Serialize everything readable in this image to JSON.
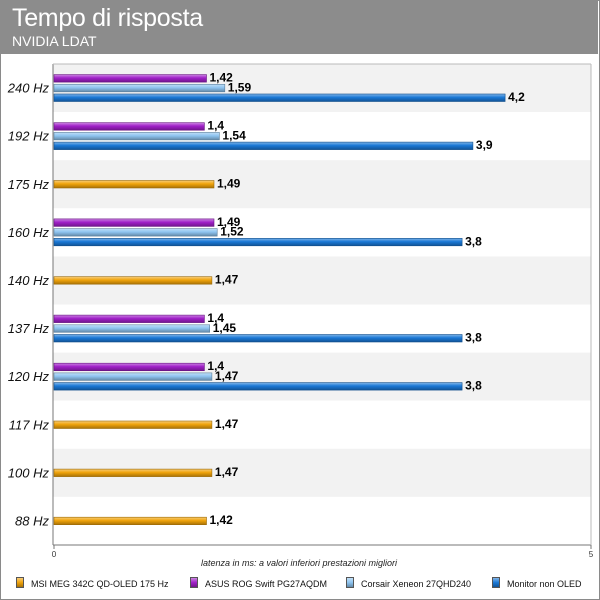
{
  "chart_data": {
    "type": "bar",
    "orientation": "horizontal",
    "title": "Tempo di risposta",
    "subtitle": "NVIDIA LDAT",
    "xlabel": "latenza in ms: a valori inferiori prestazioni migliori",
    "xlim": [
      0,
      5
    ],
    "xticks": [
      "0",
      "5"
    ],
    "grid": false,
    "legend_position": "bottom",
    "categories": [
      "240 Hz",
      "192 Hz",
      "175 Hz",
      "160 Hz",
      "140 Hz",
      "137 Hz",
      "120 Hz",
      "117 Hz",
      "100 Hz",
      "88 Hz"
    ],
    "series": [
      {
        "name": "MSI MEG 342C QD-OLED 175 Hz",
        "color": "#f0a30a",
        "values": [
          null,
          null,
          1.49,
          null,
          1.47,
          null,
          null,
          1.47,
          1.47,
          1.42
        ],
        "labels": [
          "",
          "",
          "1,49",
          "",
          "1,47",
          "",
          "",
          "1,47",
          "1,47",
          "1,42"
        ]
      },
      {
        "name": "ASUS ROG Swift PG27AQDM",
        "color": "#a020c8",
        "values": [
          1.42,
          1.4,
          null,
          1.49,
          null,
          1.4,
          1.4,
          null,
          null,
          null
        ],
        "labels": [
          "1,42",
          "1,4",
          "",
          "1,49",
          "",
          "1,4",
          "1,4",
          "",
          "",
          ""
        ]
      },
      {
        "name": "Corsair Xeneon 27QHD240",
        "color": "#8ec4f0",
        "values": [
          1.59,
          1.54,
          null,
          1.52,
          null,
          1.45,
          1.47,
          null,
          null,
          null
        ],
        "labels": [
          "1,59",
          "1,54",
          "",
          "1,52",
          "",
          "1,45",
          "1,47",
          "",
          "",
          ""
        ]
      },
      {
        "name": "Monitor non OLED",
        "color": "#1a78d6",
        "values": [
          4.2,
          3.9,
          null,
          3.8,
          null,
          3.8,
          3.8,
          null,
          null,
          null
        ],
        "labels": [
          "4,2",
          "3,9",
          "",
          "3,8",
          "",
          "3,8",
          "3,8",
          "",
          "",
          ""
        ]
      }
    ]
  }
}
